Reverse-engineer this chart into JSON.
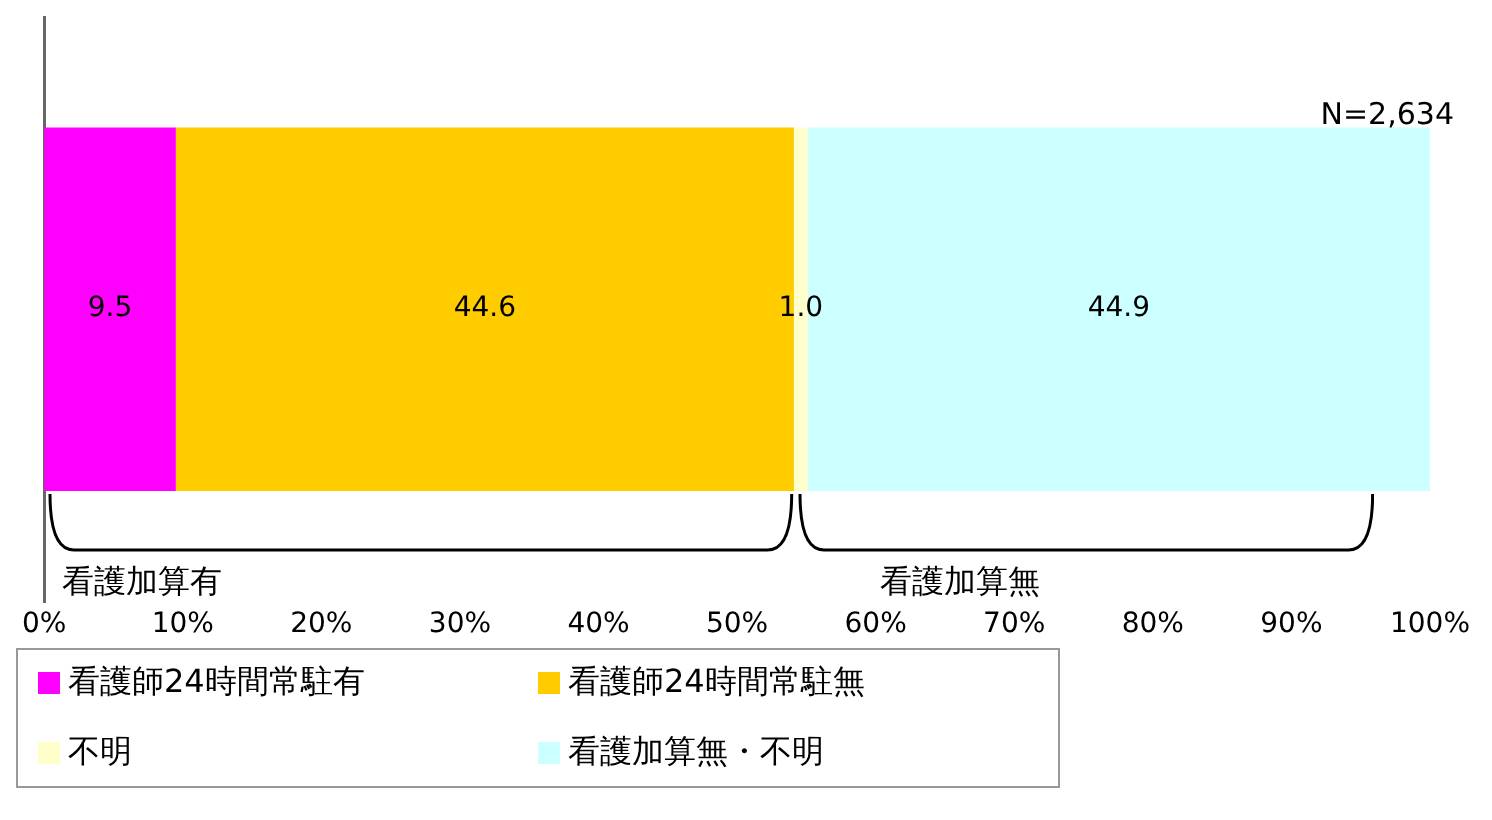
{
  "chart_data": {
    "type": "bar",
    "orientation": "horizontal",
    "stacked": true,
    "categories": [
      null
    ],
    "series": [
      {
        "name": "看護師24時間常駐有",
        "color": "#ff00ff",
        "values": [
          9.5
        ],
        "value_labels": [
          "9.5"
        ]
      },
      {
        "name": "看護師24時間常駐無",
        "color": "#ffcc00",
        "values": [
          44.6
        ],
        "value_labels": [
          "44.6"
        ]
      },
      {
        "name": "不明",
        "color": "#ffffcc",
        "values": [
          1.0
        ],
        "value_labels": [
          "1.0"
        ]
      },
      {
        "name": "看護加算無・不明",
        "color": "#ccffff",
        "values": [
          44.9
        ],
        "value_labels": [
          "44.9"
        ]
      }
    ],
    "xlim": [
      0,
      100
    ],
    "xticks": [
      {
        "value": 0,
        "label": "0%"
      },
      {
        "value": 10,
        "label": "10%"
      },
      {
        "value": 20,
        "label": "20%"
      },
      {
        "value": 30,
        "label": "30%"
      },
      {
        "value": 40,
        "label": "40%"
      },
      {
        "value": 50,
        "label": "50%"
      },
      {
        "value": 60,
        "label": "60%"
      },
      {
        "value": 70,
        "label": "70%"
      },
      {
        "value": 80,
        "label": "80%"
      },
      {
        "value": 90,
        "label": "90%"
      },
      {
        "value": 100,
        "label": "100%"
      }
    ],
    "annotations": [
      "N=2,634",
      "看護加算有",
      "看護加算無"
    ],
    "grid": false,
    "legend": "bottom"
  }
}
